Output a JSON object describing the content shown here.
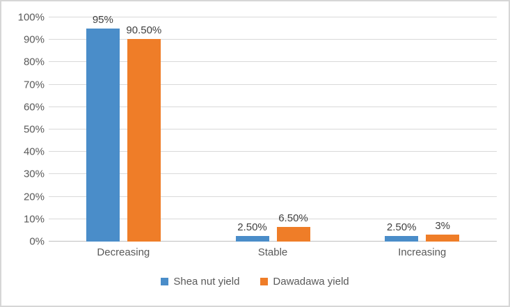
{
  "chart_data": {
    "type": "bar",
    "title": "",
    "xlabel": "",
    "ylabel": "",
    "categories": [
      "Decreasing",
      "Stable",
      "Increasing"
    ],
    "series": [
      {
        "name": "Shea nut yield",
        "color": "#4a8dc9",
        "values": [
          95,
          2.5,
          2.5
        ],
        "value_labels": [
          "95%",
          "2.50%",
          "2.50%"
        ]
      },
      {
        "name": "Dawadawa yield",
        "color": "#ef7d28",
        "values": [
          90.5,
          6.5,
          3
        ],
        "value_labels": [
          "90.50%",
          "6.50%",
          "3%"
        ]
      }
    ],
    "ylim": [
      0,
      100
    ],
    "yticks": [
      "0%",
      "10%",
      "20%",
      "30%",
      "40%",
      "50%",
      "60%",
      "70%",
      "80%",
      "90%",
      "100%"
    ],
    "grid": "horizontal",
    "gridline_color": "#d9d9d9",
    "axis_line_color": "#bfbfbf",
    "tick_label_color": "#595959",
    "value_label_color": "#3f3f3f",
    "legend_position": "bottom"
  }
}
